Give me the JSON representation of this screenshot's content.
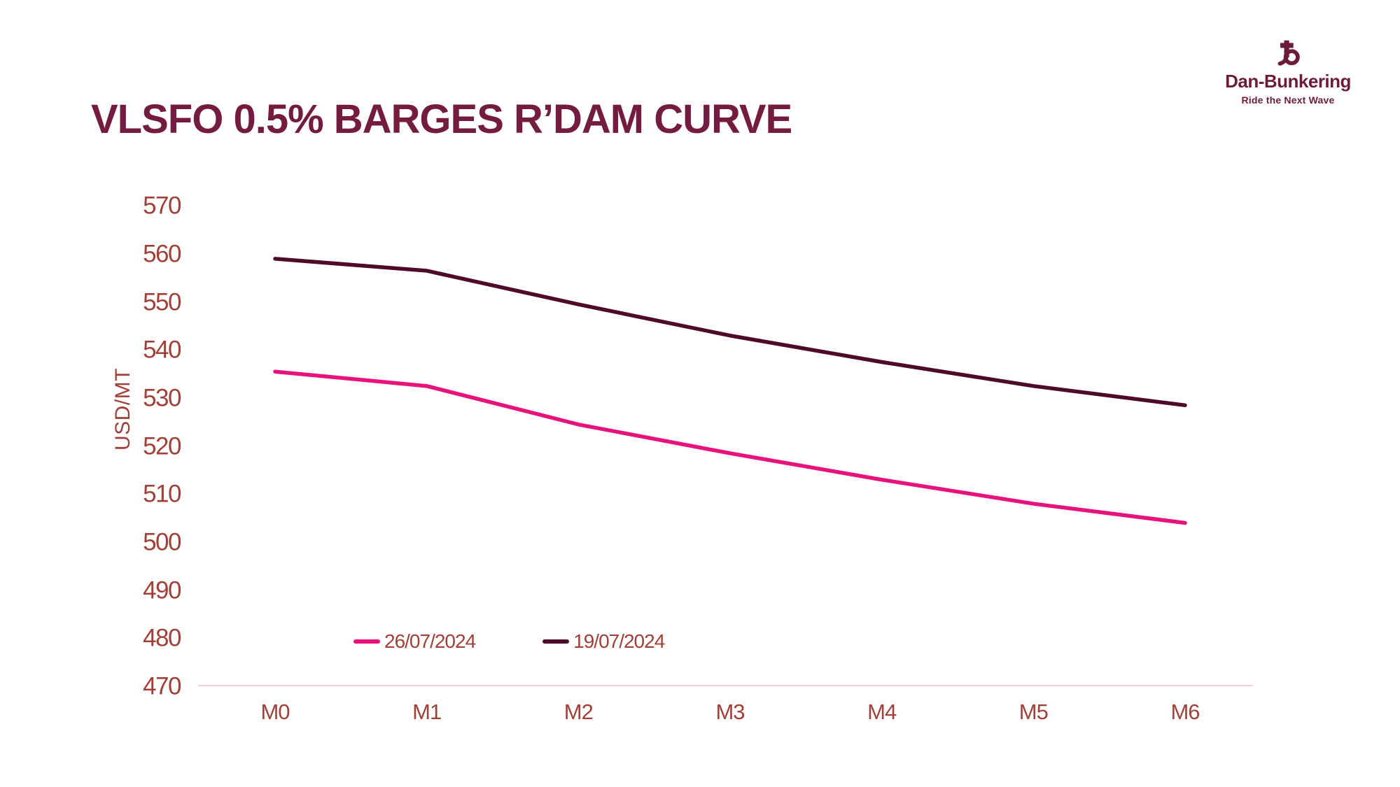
{
  "header": {
    "title": "VLSFO 0.5% BARGES R’DAM CURVE"
  },
  "logo": {
    "brand": "Dan-Bunkering",
    "tagline": "Ride the Next Wave",
    "mark_icon": "anchor-monogram-icon",
    "color": "#6B1C3A"
  },
  "colors": {
    "title_text": "#731C40",
    "axis_text": "#9F4139",
    "axis_line": "#F7CFE0",
    "background": "#FFFFFF"
  },
  "chart_data": {
    "type": "line",
    "categories": [
      "M0",
      "M1",
      "M2",
      "M3",
      "M4",
      "M5",
      "M6"
    ],
    "series": [
      {
        "name": "26/07/2024",
        "color": "#E8127D",
        "values": [
          535.5,
          532.5,
          524.5,
          518.5,
          513.0,
          508.0,
          504.0
        ]
      },
      {
        "name": "19/07/2024",
        "color": "#4D0B29",
        "values": [
          559.0,
          556.5,
          549.5,
          543.0,
          537.5,
          532.5,
          528.5
        ]
      }
    ],
    "title": "VLSFO 0.5% BARGES R’DAM CURVE",
    "xlabel": "",
    "ylabel": "USD/MT",
    "ylim": [
      470,
      570
    ],
    "ytick_step": 10,
    "grid": false,
    "legend_position": "bottom-center-inside"
  }
}
